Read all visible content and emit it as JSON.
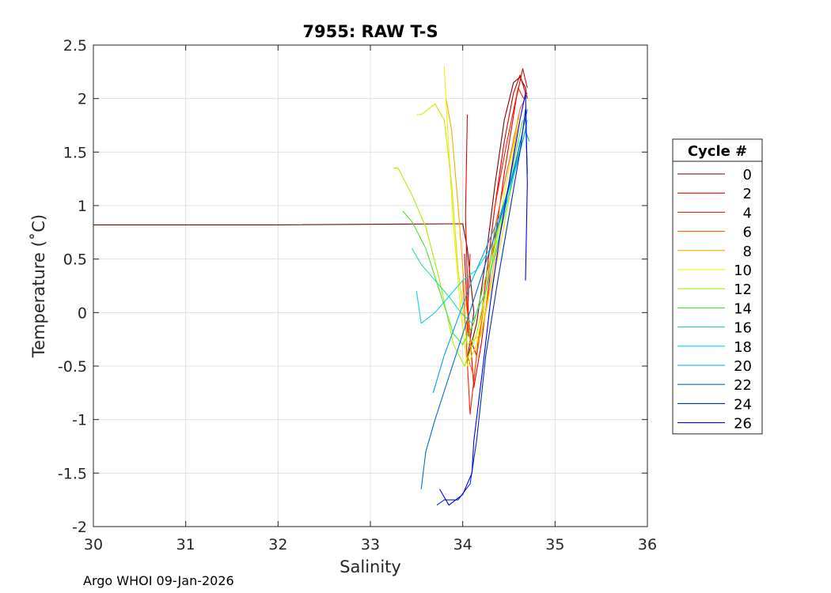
{
  "footer": "Argo WHOI 09-Jan-2026",
  "chart_data": {
    "type": "line",
    "title": "7955: RAW T-S",
    "xlabel": "Salinity",
    "ylabel": "Temperature (˚C)",
    "xlim": [
      30,
      36
    ],
    "ylim": [
      -2,
      2.5
    ],
    "xticks": [
      30,
      31,
      32,
      33,
      34,
      35,
      36
    ],
    "yticks": [
      2.5,
      2,
      1.5,
      1,
      0.5,
      0,
      -0.5,
      -1,
      -1.5,
      -2
    ],
    "grid": true,
    "legend": {
      "title": "Cycle #",
      "placement": "right-outside",
      "entries": [
        {
          "label": "0",
          "color": "#800000"
        },
        {
          "label": "2",
          "color": "#d40000"
        },
        {
          "label": "4",
          "color": "#ff1a00"
        },
        {
          "label": "6",
          "color": "#ff6000"
        },
        {
          "label": "8",
          "color": "#ffa800"
        },
        {
          "label": "10",
          "color": "#f0f000"
        },
        {
          "label": "12",
          "color": "#a8f000"
        },
        {
          "label": "14",
          "color": "#50e030"
        },
        {
          "label": "16",
          "color": "#20e0a0"
        },
        {
          "label": "18",
          "color": "#00d8e8"
        },
        {
          "label": "20",
          "color": "#00a8e0"
        },
        {
          "label": "22",
          "color": "#0070d0"
        },
        {
          "label": "24",
          "color": "#0030b0"
        },
        {
          "label": "26",
          "color": "#0000ff"
        }
      ]
    },
    "series": [
      {
        "color": "#800000",
        "x": [
          30,
          32,
          34.0,
          34.05,
          34.12,
          34.05,
          34.15,
          34.25,
          34.35,
          34.45,
          34.55,
          34.62,
          34.68,
          34.7
        ],
        "y": [
          0.82,
          0.82,
          0.83,
          0.6,
          0.0,
          -0.45,
          -0.1,
          0.5,
          1.2,
          1.8,
          2.15,
          2.2,
          2.1,
          2.0
        ]
      },
      {
        "color": "#d40000",
        "x": [
          34.02,
          34.06,
          34.15,
          34.25,
          34.35,
          34.45,
          34.55,
          34.62,
          34.68
        ],
        "y": [
          0.55,
          -0.2,
          -0.4,
          0.3,
          1.0,
          1.6,
          2.05,
          2.22,
          2.05
        ]
      },
      {
        "color": "#e80000",
        "x": [
          34.05,
          34.03,
          34.06,
          34.12,
          34.2,
          34.32,
          34.45,
          34.58,
          34.65,
          34.7
        ],
        "y": [
          1.85,
          0.9,
          0.0,
          -0.7,
          -0.3,
          0.5,
          1.3,
          2.0,
          2.28,
          2.1
        ]
      },
      {
        "color": "#ff1a00",
        "x": [
          34.08,
          34.04,
          34.08,
          34.15,
          34.25,
          34.35,
          34.48,
          34.6,
          34.66
        ],
        "y": [
          0.55,
          -0.3,
          -0.95,
          -0.4,
          0.3,
          1.0,
          1.6,
          2.1,
          2.0
        ]
      },
      {
        "color": "#ff6000",
        "x": [
          34.0,
          34.05,
          34.12,
          34.22,
          34.35,
          34.5,
          34.62,
          34.7
        ],
        "y": [
          0.3,
          -0.4,
          -0.6,
          0.0,
          0.8,
          1.4,
          1.9,
          2.05
        ]
      },
      {
        "color": "#ffa800",
        "x": [
          33.82,
          33.88,
          33.95,
          34.02,
          34.1,
          34.2,
          34.35,
          34.5,
          34.62
        ],
        "y": [
          2.0,
          1.7,
          1.0,
          0.2,
          -0.4,
          -0.2,
          0.5,
          1.2,
          1.9
        ]
      },
      {
        "color": "#f0f000",
        "x": [
          33.8,
          33.85,
          33.9,
          33.98,
          34.05,
          34.15,
          34.3,
          34.45,
          34.6
        ],
        "y": [
          2.3,
          1.5,
          0.8,
          0.0,
          -0.5,
          -0.3,
          0.4,
          1.1,
          1.8
        ]
      },
      {
        "color": "#d8e000",
        "x": [
          33.5,
          33.55,
          33.7,
          33.8,
          33.88,
          33.95,
          34.05,
          34.2,
          34.4,
          34.6
        ],
        "y": [
          1.85,
          1.85,
          1.95,
          1.8,
          1.2,
          0.4,
          -0.3,
          -0.2,
          0.6,
          1.5
        ]
      },
      {
        "color": "#a8f000",
        "x": [
          33.25,
          33.3,
          33.45,
          33.6,
          33.75,
          33.9,
          34.02,
          34.15,
          34.35,
          34.55
        ],
        "y": [
          1.35,
          1.35,
          1.1,
          0.8,
          0.3,
          -0.3,
          -0.5,
          -0.2,
          0.6,
          1.4
        ]
      },
      {
        "color": "#50e030",
        "x": [
          33.35,
          33.45,
          33.6,
          33.75,
          33.9,
          34.0,
          34.12,
          34.3,
          34.5,
          34.65
        ],
        "y": [
          0.95,
          0.85,
          0.6,
          0.2,
          -0.2,
          -0.3,
          -0.1,
          0.5,
          1.2,
          1.8
        ]
      },
      {
        "color": "#20e0a0",
        "x": [
          33.45,
          33.55,
          33.7,
          33.85,
          33.98,
          34.1,
          34.25,
          34.45,
          34.62
        ],
        "y": [
          0.6,
          0.45,
          0.3,
          0.15,
          0.0,
          -0.1,
          0.2,
          0.9,
          1.6
        ]
      },
      {
        "color": "#00d8e8",
        "x": [
          33.5,
          33.55,
          33.7,
          33.85,
          34.0,
          34.15,
          34.3,
          34.5,
          34.65,
          34.7
        ],
        "y": [
          0.2,
          -0.1,
          0.0,
          0.15,
          0.3,
          0.4,
          0.6,
          1.1,
          1.6,
          1.8
        ]
      },
      {
        "color": "#00a8e0",
        "x": [
          33.68,
          33.8,
          33.95,
          34.1,
          34.25,
          34.4,
          34.55,
          34.68,
          34.72
        ],
        "y": [
          -0.75,
          -0.4,
          -0.05,
          0.3,
          0.6,
          0.9,
          1.3,
          1.7,
          1.6
        ]
      },
      {
        "color": "#0070d0",
        "x": [
          33.55,
          33.6,
          33.7,
          33.85,
          34.0,
          34.15,
          34.3,
          34.45,
          34.6,
          34.7
        ],
        "y": [
          -1.65,
          -1.3,
          -1.0,
          -0.6,
          -0.2,
          0.2,
          0.6,
          1.0,
          1.5,
          1.9
        ]
      },
      {
        "color": "#0030b0",
        "x": [
          33.72,
          33.8,
          33.95,
          34.08,
          34.15,
          34.25,
          34.38,
          34.5,
          34.62,
          34.68,
          34.7
        ],
        "y": [
          -1.8,
          -1.75,
          -1.75,
          -1.6,
          -1.2,
          -0.4,
          0.3,
          0.9,
          1.5,
          1.9,
          1.3
        ]
      },
      {
        "color": "#0000ff",
        "x": [
          33.75,
          33.85,
          34.0,
          34.1,
          34.12,
          34.22,
          34.3,
          34.4,
          34.52,
          34.62,
          34.68,
          34.7,
          34.68
        ],
        "y": [
          -1.65,
          -1.8,
          -1.7,
          -1.5,
          -1.2,
          -0.5,
          0.1,
          0.7,
          1.3,
          1.8,
          2.05,
          1.2,
          0.3
        ]
      }
    ]
  }
}
